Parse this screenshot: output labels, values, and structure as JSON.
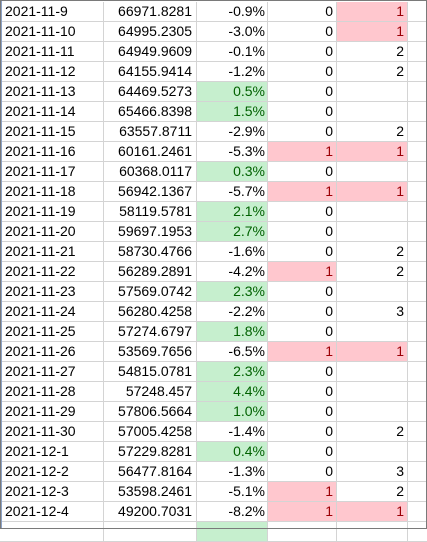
{
  "colors": {
    "positive_fill": "#c6efce",
    "positive_text": "#006100",
    "flag_fill": "#ffc7ce",
    "flag_text": "#9c0006",
    "gridline": "#d4d4d4"
  },
  "rows": [
    {
      "date": "2021-11-9",
      "value": "66971.8281",
      "pct": "-0.9%",
      "pct_positive": false,
      "f1": "0",
      "f1_flag": false,
      "f2": "1",
      "f2_flag": true
    },
    {
      "date": "2021-11-10",
      "value": "64995.2305",
      "pct": "-3.0%",
      "pct_positive": false,
      "f1": "0",
      "f1_flag": false,
      "f2": "1",
      "f2_flag": true
    },
    {
      "date": "2021-11-11",
      "value": "64949.9609",
      "pct": "-0.1%",
      "pct_positive": false,
      "f1": "0",
      "f1_flag": false,
      "f2": "2",
      "f2_flag": false
    },
    {
      "date": "2021-11-12",
      "value": "64155.9414",
      "pct": "-1.2%",
      "pct_positive": false,
      "f1": "0",
      "f1_flag": false,
      "f2": "2",
      "f2_flag": false
    },
    {
      "date": "2021-11-13",
      "value": "64469.5273",
      "pct": "0.5%",
      "pct_positive": true,
      "f1": "0",
      "f1_flag": false,
      "f2": "",
      "f2_flag": false
    },
    {
      "date": "2021-11-14",
      "value": "65466.8398",
      "pct": "1.5%",
      "pct_positive": true,
      "f1": "0",
      "f1_flag": false,
      "f2": "",
      "f2_flag": false
    },
    {
      "date": "2021-11-15",
      "value": "63557.8711",
      "pct": "-2.9%",
      "pct_positive": false,
      "f1": "0",
      "f1_flag": false,
      "f2": "2",
      "f2_flag": false
    },
    {
      "date": "2021-11-16",
      "value": "60161.2461",
      "pct": "-5.3%",
      "pct_positive": false,
      "f1": "1",
      "f1_flag": true,
      "f2": "1",
      "f2_flag": true
    },
    {
      "date": "2021-11-17",
      "value": "60368.0117",
      "pct": "0.3%",
      "pct_positive": true,
      "f1": "0",
      "f1_flag": false,
      "f2": "",
      "f2_flag": false
    },
    {
      "date": "2021-11-18",
      "value": "56942.1367",
      "pct": "-5.7%",
      "pct_positive": false,
      "f1": "1",
      "f1_flag": true,
      "f2": "1",
      "f2_flag": true
    },
    {
      "date": "2021-11-19",
      "value": "58119.5781",
      "pct": "2.1%",
      "pct_positive": true,
      "f1": "0",
      "f1_flag": false,
      "f2": "",
      "f2_flag": false
    },
    {
      "date": "2021-11-20",
      "value": "59697.1953",
      "pct": "2.7%",
      "pct_positive": true,
      "f1": "0",
      "f1_flag": false,
      "f2": "",
      "f2_flag": false
    },
    {
      "date": "2021-11-21",
      "value": "58730.4766",
      "pct": "-1.6%",
      "pct_positive": false,
      "f1": "0",
      "f1_flag": false,
      "f2": "2",
      "f2_flag": false
    },
    {
      "date": "2021-11-22",
      "value": "56289.2891",
      "pct": "-4.2%",
      "pct_positive": false,
      "f1": "1",
      "f1_flag": true,
      "f2": "2",
      "f2_flag": false
    },
    {
      "date": "2021-11-23",
      "value": "57569.0742",
      "pct": "2.3%",
      "pct_positive": true,
      "f1": "0",
      "f1_flag": false,
      "f2": "",
      "f2_flag": false
    },
    {
      "date": "2021-11-24",
      "value": "56280.4258",
      "pct": "-2.2%",
      "pct_positive": false,
      "f1": "0",
      "f1_flag": false,
      "f2": "3",
      "f2_flag": false
    },
    {
      "date": "2021-11-25",
      "value": "57274.6797",
      "pct": "1.8%",
      "pct_positive": true,
      "f1": "0",
      "f1_flag": false,
      "f2": "",
      "f2_flag": false
    },
    {
      "date": "2021-11-26",
      "value": "53569.7656",
      "pct": "-6.5%",
      "pct_positive": false,
      "f1": "1",
      "f1_flag": true,
      "f2": "1",
      "f2_flag": true
    },
    {
      "date": "2021-11-27",
      "value": "54815.0781",
      "pct": "2.3%",
      "pct_positive": true,
      "f1": "0",
      "f1_flag": false,
      "f2": "",
      "f2_flag": false
    },
    {
      "date": "2021-11-28",
      "value": "57248.457",
      "pct": "4.4%",
      "pct_positive": true,
      "f1": "0",
      "f1_flag": false,
      "f2": "",
      "f2_flag": false
    },
    {
      "date": "2021-11-29",
      "value": "57806.5664",
      "pct": "1.0%",
      "pct_positive": true,
      "f1": "0",
      "f1_flag": false,
      "f2": "",
      "f2_flag": false
    },
    {
      "date": "2021-11-30",
      "value": "57005.4258",
      "pct": "-1.4%",
      "pct_positive": false,
      "f1": "0",
      "f1_flag": false,
      "f2": "2",
      "f2_flag": false
    },
    {
      "date": "2021-12-1",
      "value": "57229.8281",
      "pct": "0.4%",
      "pct_positive": true,
      "f1": "0",
      "f1_flag": false,
      "f2": "",
      "f2_flag": false
    },
    {
      "date": "2021-12-2",
      "value": "56477.8164",
      "pct": "-1.3%",
      "pct_positive": false,
      "f1": "0",
      "f1_flag": false,
      "f2": "3",
      "f2_flag": false
    },
    {
      "date": "2021-12-3",
      "value": "53598.2461",
      "pct": "-5.1%",
      "pct_positive": false,
      "f1": "1",
      "f1_flag": true,
      "f2": "2",
      "f2_flag": false
    },
    {
      "date": "2021-12-4",
      "value": "49200.7031",
      "pct": "-8.2%",
      "pct_positive": false,
      "f1": "1",
      "f1_flag": true,
      "f2": "1",
      "f2_flag": true
    }
  ]
}
